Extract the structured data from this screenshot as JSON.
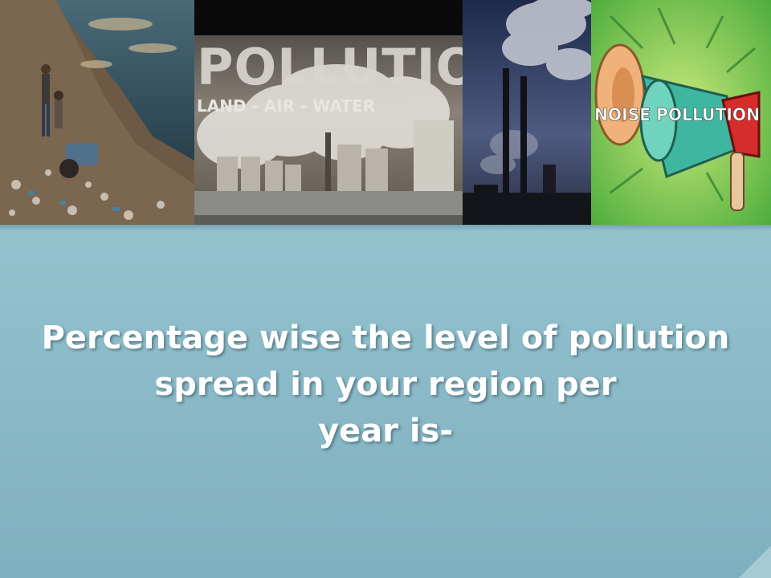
{
  "banner": {
    "panel2_title": "POLLUTION",
    "panel2_subtitle": "LAND - AIR - WATER",
    "panel4_label": "NOISE POLLUTION"
  },
  "question": {
    "line1": "Percentage wise the level of pollution",
    "line2": "spread in your region per",
    "line3": "year is-"
  },
  "colors": {
    "background": "#8fbdcb",
    "text": "#ffffff"
  }
}
